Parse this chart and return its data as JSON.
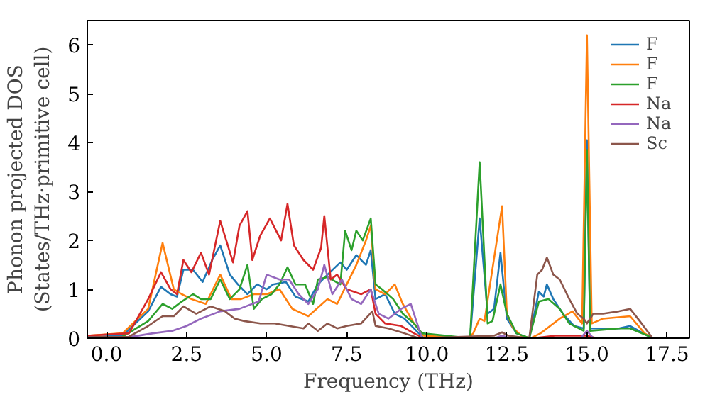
{
  "chart_data": {
    "type": "line",
    "xlabel": "Frequency (THz)",
    "ylabel": "Phonon projected DOS\n(States/THz·primitive cell)",
    "xlim": [
      -0.6,
      18.2
    ],
    "ylim": [
      0,
      6.5
    ],
    "xticks": [
      {
        "value": 0,
        "label": "0.0"
      },
      2.5,
      {
        "value": 5,
        "label": "5.0"
      },
      7.5,
      {
        "value": 10,
        "label": "10.0"
      },
      12.5,
      {
        "value": 15,
        "label": "15.0"
      },
      17.5
    ],
    "yticks": [
      0,
      1,
      2,
      3,
      4,
      5,
      6
    ],
    "grid": false,
    "legend": "top right",
    "marker": "none",
    "line_style": "solid",
    "series": [
      {
        "name": "F",
        "color": "#1f77b4",
        "x": [
          -0.6,
          0.5,
          1.3,
          1.7,
          2.0,
          2.2,
          2.4,
          2.7,
          3.0,
          3.3,
          3.55,
          3.85,
          4.1,
          4.4,
          4.7,
          5.0,
          5.2,
          5.6,
          5.9,
          6.3,
          6.6,
          6.9,
          7.3,
          7.5,
          7.8,
          8.1,
          8.25,
          8.4,
          8.7,
          9.0,
          9.3,
          9.75,
          9.9,
          11.35,
          11.65,
          11.9,
          12.1,
          12.3,
          12.5,
          12.8,
          13.2,
          13.5,
          13.65,
          13.75,
          13.95,
          14.25,
          14.6,
          14.9,
          15.0,
          15.1,
          16.0,
          16.35,
          16.9,
          17.05,
          18.2
        ],
        "values": [
          0.02,
          0.05,
          0.55,
          1.05,
          0.9,
          0.85,
          1.4,
          1.4,
          1.15,
          1.6,
          1.9,
          1.3,
          1.1,
          0.9,
          1.1,
          1.0,
          1.1,
          1.15,
          0.85,
          0.75,
          1.1,
          1.3,
          1.55,
          1.4,
          1.7,
          1.5,
          1.8,
          0.8,
          0.9,
          0.5,
          0.4,
          0.1,
          0,
          0,
          2.45,
          0.5,
          0.6,
          1.75,
          0.4,
          0.1,
          0,
          0.95,
          0.85,
          1.1,
          0.8,
          0.5,
          0.25,
          0.2,
          4.05,
          0.2,
          0.2,
          0.25,
          0.05,
          0,
          0
        ]
      },
      {
        "name": "F",
        "color": "#ff7f0e",
        "x": [
          -0.6,
          0.5,
          1.3,
          1.75,
          2.1,
          2.35,
          2.65,
          3.1,
          3.55,
          3.9,
          4.2,
          4.6,
          5.0,
          5.4,
          5.8,
          6.3,
          6.9,
          7.2,
          7.5,
          7.8,
          8.1,
          8.25,
          8.4,
          8.7,
          9.0,
          9.25,
          9.6,
          9.9,
          11.3,
          11.45,
          11.65,
          11.8,
          12.35,
          12.5,
          12.7,
          12.95,
          13.25,
          13.55,
          14.15,
          14.55,
          14.85,
          15.0,
          15.15,
          15.5,
          16.35,
          16.8,
          17.05,
          18.2
        ],
        "values": [
          0.05,
          0.1,
          0.6,
          1.95,
          1.0,
          0.9,
          0.8,
          0.7,
          1.3,
          0.8,
          0.8,
          0.9,
          0.9,
          1.0,
          0.6,
          0.45,
          0.8,
          0.7,
          1.1,
          1.5,
          2.0,
          2.3,
          1.0,
          0.9,
          1.1,
          0.7,
          0.3,
          0.05,
          0,
          0.1,
          0.4,
          0.35,
          2.7,
          0.5,
          0.2,
          0.05,
          0,
          0.1,
          0.4,
          0.55,
          0.3,
          6.2,
          0.3,
          0.4,
          0.45,
          0.1,
          0,
          0
        ]
      },
      {
        "name": "F",
        "color": "#2ca02c",
        "x": [
          -0.6,
          0.5,
          1.3,
          1.75,
          2.05,
          2.35,
          2.7,
          2.95,
          3.25,
          3.55,
          3.85,
          4.15,
          4.4,
          4.6,
          4.85,
          5.15,
          5.4,
          5.65,
          5.9,
          6.2,
          6.45,
          6.6,
          6.9,
          7.3,
          7.45,
          7.65,
          7.8,
          8.0,
          8.25,
          8.4,
          8.6,
          8.95,
          9.25,
          9.6,
          9.85,
          11.35,
          11.65,
          11.9,
          12.05,
          12.3,
          12.5,
          12.8,
          13.2,
          13.5,
          13.8,
          14.15,
          14.45,
          14.9,
          15.0,
          15.1,
          16.0,
          16.35,
          16.9,
          17.05,
          18.2
        ],
        "values": [
          0.02,
          0.03,
          0.35,
          0.7,
          0.6,
          0.75,
          0.9,
          0.8,
          0.8,
          1.2,
          0.8,
          1.0,
          1.5,
          0.6,
          0.8,
          0.9,
          1.1,
          1.45,
          1.1,
          1.1,
          0.7,
          1.2,
          1.25,
          1.1,
          2.2,
          1.8,
          2.2,
          2.0,
          2.45,
          1.1,
          1.0,
          0.8,
          0.5,
          0.3,
          0.1,
          0,
          3.6,
          0.3,
          0.35,
          1.1,
          0.5,
          0.1,
          0,
          0.75,
          0.8,
          0.6,
          0.3,
          0.15,
          3.85,
          0.15,
          0.2,
          0.2,
          0.05,
          0,
          0
        ]
      },
      {
        "name": "Na",
        "color": "#d62728",
        "x": [
          -0.6,
          0.7,
          1.3,
          1.7,
          2.0,
          2.2,
          2.4,
          2.65,
          2.95,
          3.2,
          3.55,
          3.95,
          4.15,
          4.4,
          4.55,
          4.8,
          5.1,
          5.45,
          5.65,
          5.85,
          6.15,
          6.45,
          6.7,
          6.8,
          7.0,
          7.2,
          7.5,
          7.95,
          8.25,
          8.4,
          8.7,
          9.2,
          9.6,
          9.9,
          13.3,
          14.0,
          15.0,
          15.3,
          18.2
        ],
        "values": [
          0.05,
          0.1,
          0.8,
          1.35,
          1.0,
          0.9,
          1.6,
          1.35,
          1.75,
          1.3,
          2.4,
          1.55,
          2.3,
          2.6,
          1.6,
          2.1,
          2.45,
          2.0,
          2.75,
          1.9,
          1.6,
          1.4,
          1.85,
          2.5,
          1.2,
          1.3,
          1.0,
          0.9,
          1.0,
          0.5,
          0.3,
          0.25,
          0.1,
          0,
          0,
          0.05,
          0.05,
          0,
          0
        ]
      },
      {
        "name": "Na",
        "color": "#9467bd",
        "x": [
          -0.6,
          0.7,
          1.45,
          2.05,
          2.5,
          2.95,
          3.55,
          4.15,
          4.75,
          5.0,
          5.4,
          5.7,
          6.0,
          6.3,
          6.6,
          6.8,
          7.05,
          7.35,
          7.65,
          7.95,
          8.25,
          8.5,
          8.8,
          9.2,
          9.5,
          9.7,
          9.85,
          12.1,
          12.35,
          12.6,
          14.8,
          15.0,
          15.2,
          18.2
        ],
        "values": [
          0.02,
          0.02,
          0.1,
          0.15,
          0.25,
          0.4,
          0.55,
          0.6,
          0.75,
          1.3,
          1.2,
          1.2,
          0.9,
          0.7,
          1.0,
          1.5,
          0.9,
          1.2,
          0.8,
          0.7,
          1.0,
          0.5,
          0.4,
          0.6,
          0.7,
          0.3,
          0,
          0,
          0.05,
          0,
          0,
          0.15,
          0,
          0
        ]
      },
      {
        "name": "Sc",
        "color": "#8c564b",
        "x": [
          -0.6,
          0.7,
          1.3,
          1.75,
          2.1,
          2.4,
          2.8,
          3.25,
          3.7,
          4.0,
          4.3,
          4.8,
          5.25,
          5.7,
          6.15,
          6.3,
          6.6,
          6.9,
          7.2,
          7.5,
          7.95,
          8.3,
          8.4,
          8.8,
          9.3,
          9.75,
          12.1,
          12.35,
          12.55,
          13.2,
          13.45,
          13.6,
          13.75,
          13.95,
          14.15,
          14.45,
          14.7,
          14.9,
          15.0,
          15.2,
          15.5,
          16.0,
          16.35,
          16.65,
          17.05,
          18.2
        ],
        "values": [
          0.02,
          0.03,
          0.25,
          0.45,
          0.45,
          0.65,
          0.5,
          0.65,
          0.55,
          0.4,
          0.35,
          0.3,
          0.3,
          0.25,
          0.2,
          0.3,
          0.15,
          0.3,
          0.2,
          0.25,
          0.3,
          0.55,
          0.25,
          0.2,
          0.1,
          0,
          0.05,
          0.12,
          0.05,
          0,
          1.3,
          1.4,
          1.65,
          1.3,
          1.2,
          0.8,
          0.5,
          0.4,
          0.3,
          0.5,
          0.5,
          0.55,
          0.6,
          0.35,
          0,
          0
        ]
      }
    ]
  }
}
